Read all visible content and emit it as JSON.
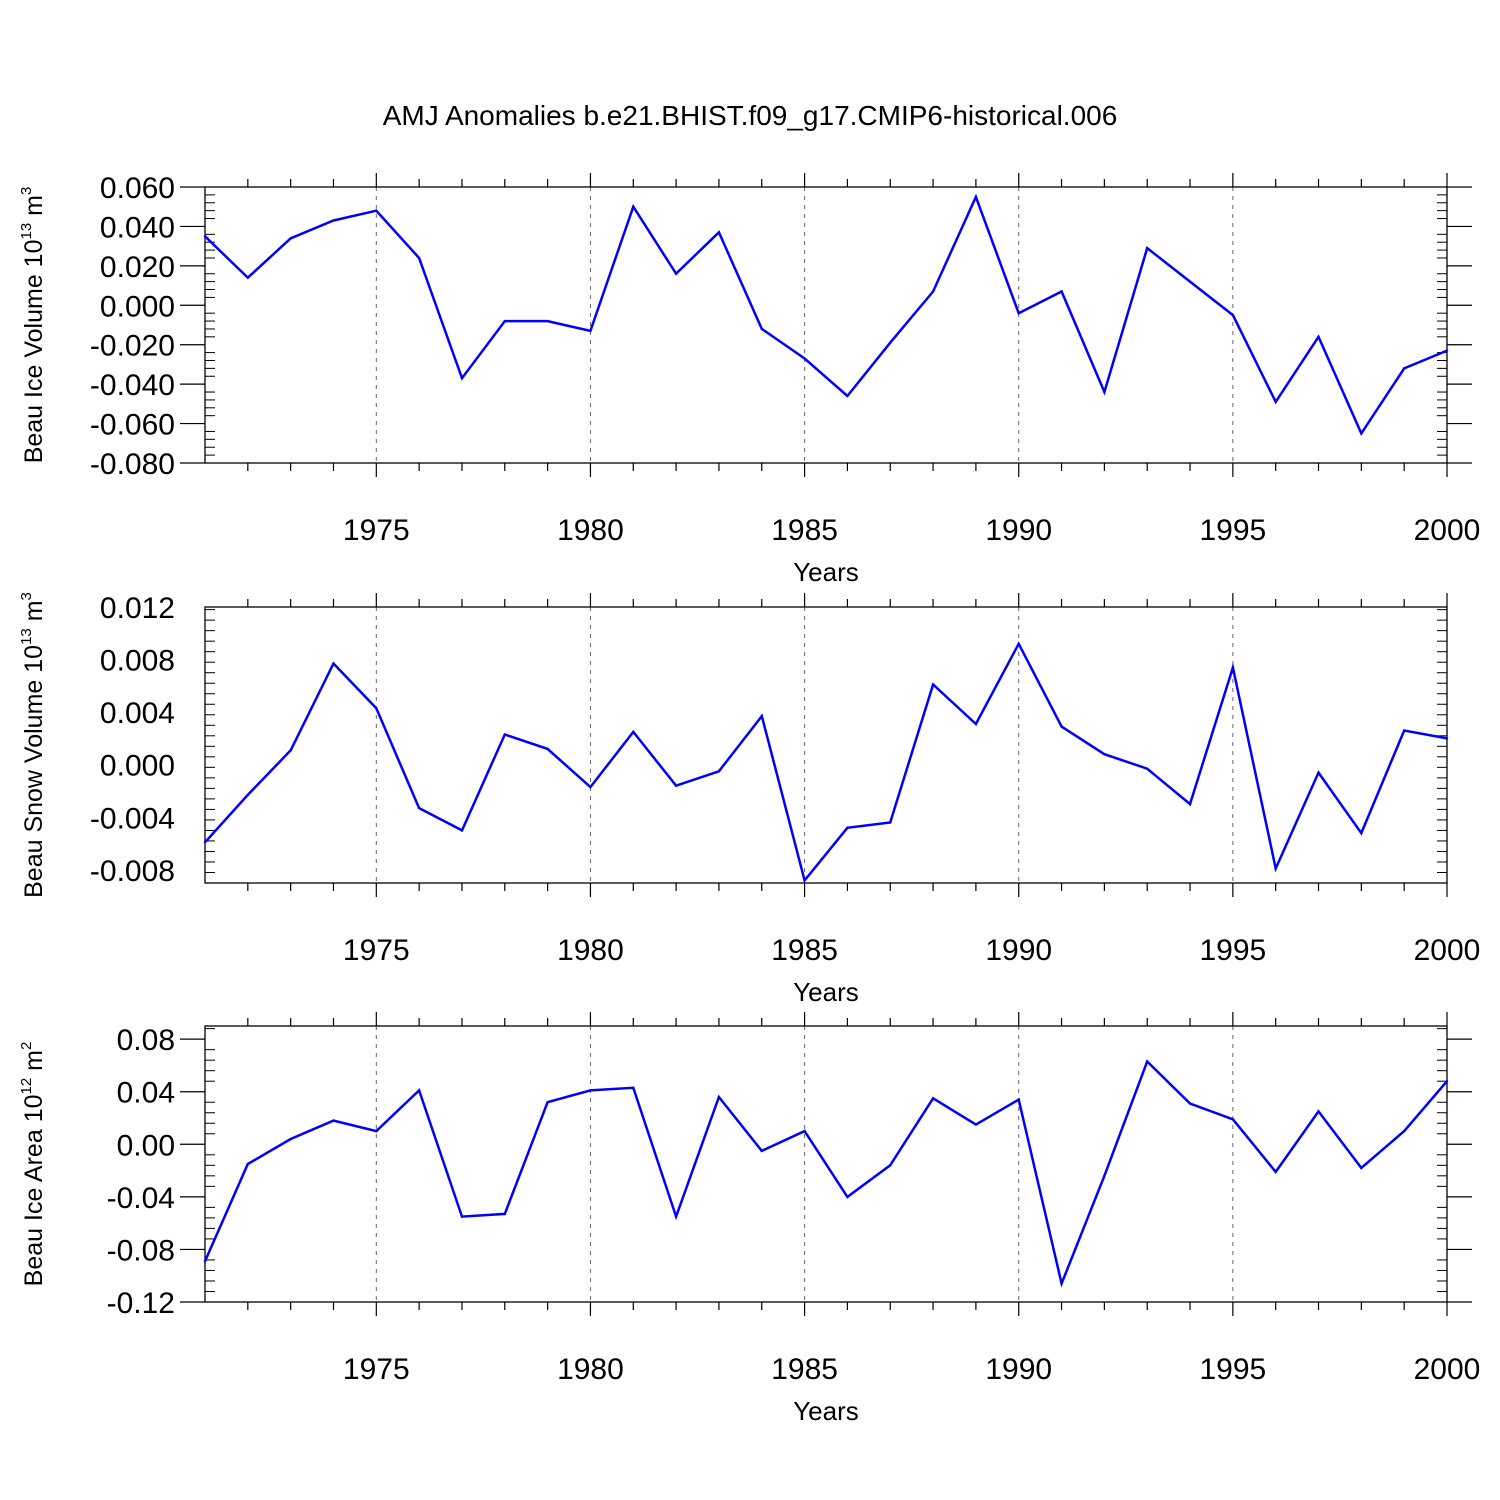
{
  "title": "AMJ Anomalies b.e21.BHIST.f09_g17.CMIP6-historical.006",
  "colors": {
    "line": "#0000ff",
    "axis": "#000000",
    "grid": "#666666"
  },
  "chart_data": [
    {
      "type": "line",
      "xlabel": "Years",
      "ylabel": {
        "text": "Beau Ice Volume 10",
        "exp": "13",
        "unit": " m",
        "unit_exp": "3"
      },
      "xlim": [
        1971,
        2000
      ],
      "ylim": [
        -0.08,
        0.06
      ],
      "xticks": [
        1975,
        1980,
        1985,
        1990,
        1995,
        2000
      ],
      "yticks": [
        {
          "v": 0.06,
          "label": "0.060"
        },
        {
          "v": 0.04,
          "label": "0.040"
        },
        {
          "v": 0.02,
          "label": "0.020"
        },
        {
          "v": 0.0,
          "label": "0.000"
        },
        {
          "v": -0.02,
          "label": "-0.020"
        },
        {
          "v": -0.04,
          "label": "-0.040"
        },
        {
          "v": -0.06,
          "label": "-0.060"
        },
        {
          "v": -0.08,
          "label": "-0.080"
        }
      ],
      "grid": "dashed vertical at major x ticks",
      "x": [
        1971,
        1972,
        1973,
        1974,
        1975,
        1976,
        1977,
        1978,
        1979,
        1980,
        1981,
        1982,
        1983,
        1984,
        1985,
        1986,
        1987,
        1988,
        1989,
        1990,
        1991,
        1992,
        1993,
        1994,
        1995,
        1996,
        1997,
        1998,
        1999,
        2000
      ],
      "values": [
        0.035,
        0.014,
        0.034,
        0.043,
        0.048,
        0.024,
        -0.037,
        -0.008,
        -0.008,
        -0.013,
        0.05,
        0.016,
        0.037,
        -0.012,
        -0.027,
        -0.046,
        -0.019,
        0.007,
        0.055,
        -0.004,
        0.007,
        -0.044,
        0.029,
        0.012,
        -0.005,
        -0.049,
        -0.016,
        -0.065,
        -0.032,
        -0.023
      ]
    },
    {
      "type": "line",
      "xlabel": "Years",
      "ylabel": {
        "text": "Beau Snow Volume 10",
        "exp": "13",
        "unit": " m",
        "unit_exp": "3"
      },
      "xlim": [
        1971,
        2000
      ],
      "ylim": [
        -0.009,
        0.012
      ],
      "xticks": [
        1975,
        1980,
        1985,
        1990,
        1995,
        2000
      ],
      "yticks": [
        {
          "v": 0.012,
          "label": "0.012"
        },
        {
          "v": 0.008,
          "label": "0.008"
        },
        {
          "v": 0.004,
          "label": "0.004"
        },
        {
          "v": 0.0,
          "label": "0.000"
        },
        {
          "v": -0.004,
          "label": "-0.004"
        },
        {
          "v": -0.008,
          "label": "-0.008"
        }
      ],
      "grid": "dashed vertical at major x ticks",
      "x": [
        1971,
        1972,
        1973,
        1974,
        1975,
        1976,
        1977,
        1978,
        1979,
        1980,
        1981,
        1982,
        1983,
        1984,
        1985,
        1986,
        1987,
        1988,
        1989,
        1990,
        1991,
        1992,
        1993,
        1994,
        1995,
        1996,
        1997,
        1998,
        1999,
        2000
      ],
      "values": [
        -0.0059,
        -0.0023,
        0.0011,
        0.0077,
        0.0043,
        -0.0033,
        -0.005,
        0.0023,
        0.0012,
        -0.0017,
        0.0025,
        -0.0016,
        -0.0005,
        0.0037,
        -0.0088,
        -0.0048,
        -0.0044,
        0.0061,
        0.0031,
        0.0092,
        0.0029,
        0.0008,
        -0.0003,
        -0.003,
        0.0074,
        -0.0079,
        -0.0006,
        -0.0052,
        0.0026,
        0.002
      ]
    },
    {
      "type": "line",
      "xlabel": "Years",
      "ylabel": {
        "text": "Beau Ice Area 10",
        "exp": "12",
        "unit": " m",
        "unit_exp": "2"
      },
      "xlim": [
        1971,
        2000
      ],
      "ylim": [
        -0.12,
        0.09
      ],
      "xticks": [
        1975,
        1980,
        1985,
        1990,
        1995,
        2000
      ],
      "yticks": [
        {
          "v": 0.08,
          "label": "0.08"
        },
        {
          "v": 0.04,
          "label": "0.04"
        },
        {
          "v": 0.0,
          "label": "0.00"
        },
        {
          "v": -0.04,
          "label": "-0.04"
        },
        {
          "v": -0.08,
          "label": "-0.08"
        },
        {
          "v": -0.12,
          "label": "-0.12"
        }
      ],
      "grid": "dashed vertical at major x ticks",
      "x": [
        1971,
        1972,
        1973,
        1974,
        1975,
        1976,
        1977,
        1978,
        1979,
        1980,
        1981,
        1982,
        1983,
        1984,
        1985,
        1986,
        1987,
        1988,
        1989,
        1990,
        1991,
        1992,
        1993,
        1994,
        1995,
        1996,
        1997,
        1998,
        1999,
        2000
      ],
      "values": [
        -0.089,
        -0.015,
        0.004,
        0.018,
        0.01,
        0.041,
        -0.055,
        -0.053,
        0.032,
        0.041,
        0.043,
        -0.055,
        0.036,
        -0.005,
        0.01,
        -0.04,
        -0.016,
        0.035,
        0.015,
        0.034,
        -0.106,
        -0.024,
        0.063,
        0.031,
        0.019,
        -0.021,
        0.025,
        -0.018,
        0.01,
        0.048
      ]
    }
  ]
}
